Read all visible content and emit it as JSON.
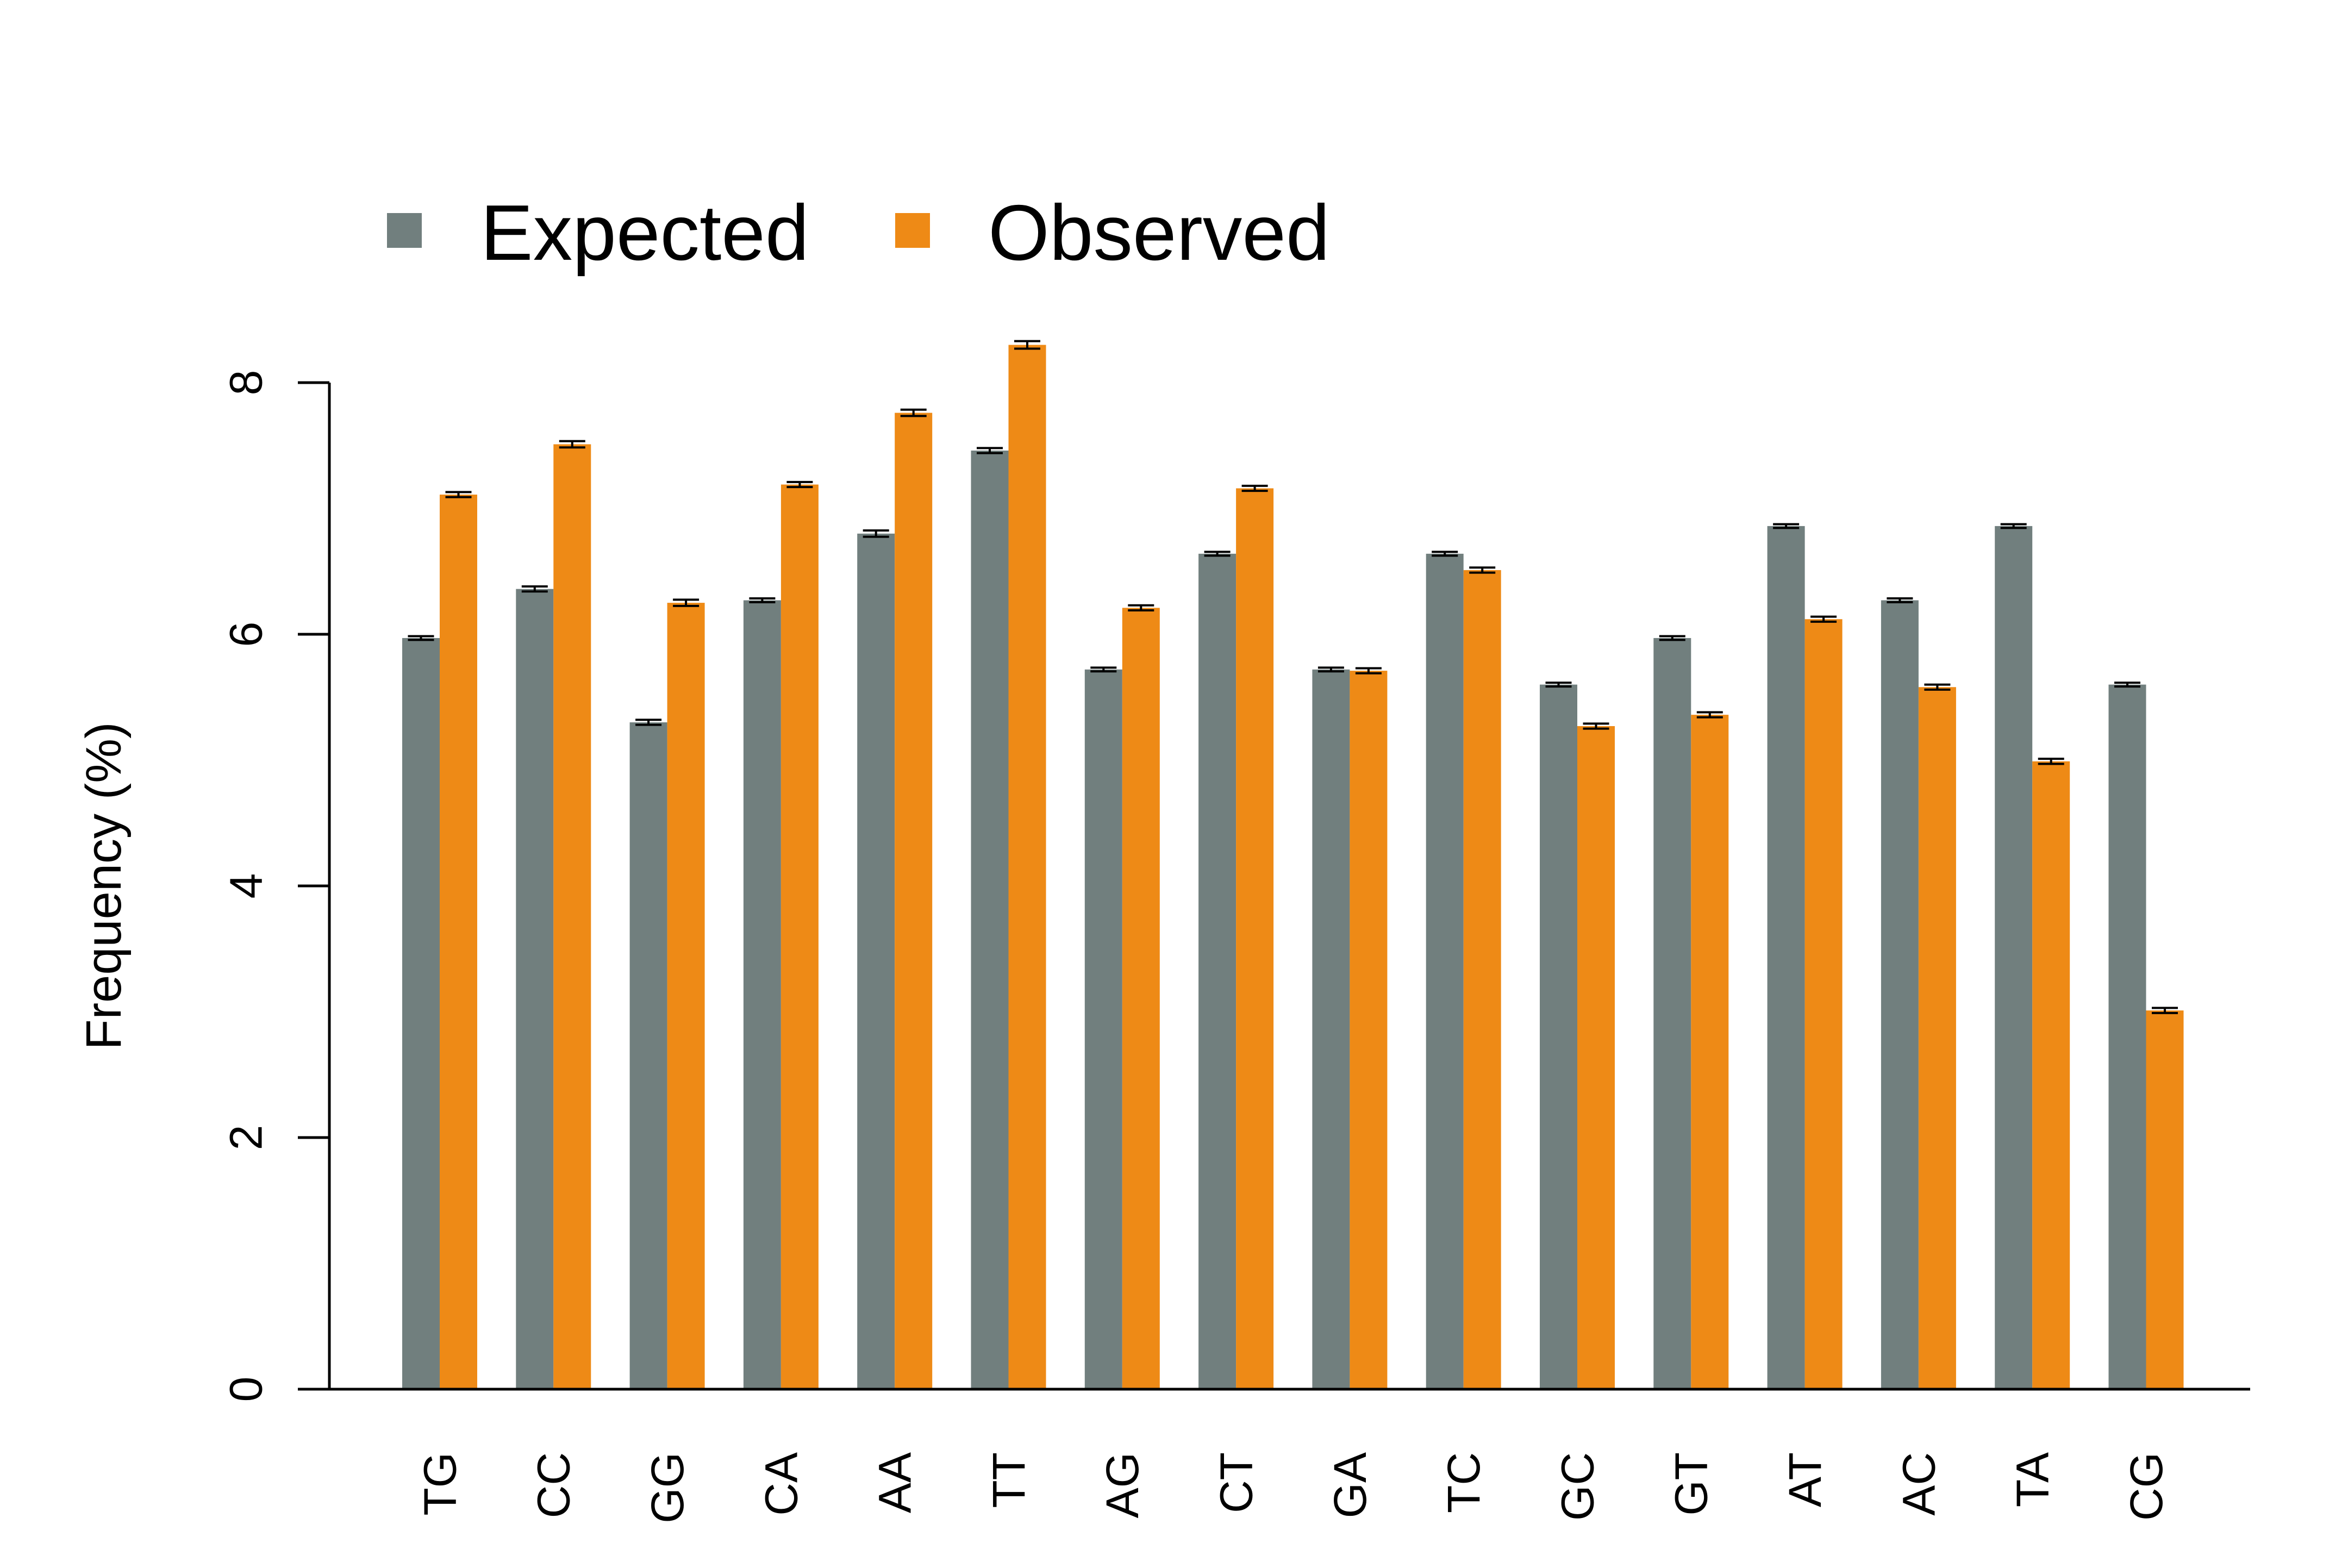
{
  "chart_data": {
    "type": "bar",
    "title": "",
    "xlabel": "",
    "ylabel": "Frequency (%)",
    "ylim": [
      0,
      8
    ],
    "yticks": [
      0,
      2,
      4,
      6,
      8
    ],
    "legend_position": "top-left",
    "grid": false,
    "error_bars": true,
    "categories": [
      "TG",
      "CC",
      "GG",
      "CA",
      "AA",
      "TT",
      "AG",
      "CT",
      "GA",
      "TC",
      "GC",
      "GT",
      "AT",
      "AC",
      "TA",
      "CG"
    ],
    "series": [
      {
        "name": "Expected",
        "color": "#717f7e",
        "values": [
          5.97,
          6.36,
          5.3,
          6.27,
          6.8,
          7.46,
          5.72,
          6.64,
          5.72,
          6.64,
          5.6,
          5.97,
          6.86,
          6.27,
          6.86,
          5.6
        ],
        "errors": [
          0.015,
          0.02,
          0.02,
          0.015,
          0.025,
          0.02,
          0.015,
          0.015,
          0.015,
          0.015,
          0.015,
          0.015,
          0.015,
          0.015,
          0.015,
          0.015
        ]
      },
      {
        "name": "Observed",
        "color": "#ee8a16",
        "values": [
          7.11,
          7.51,
          6.25,
          7.19,
          7.76,
          8.3,
          6.21,
          7.16,
          5.71,
          6.51,
          5.27,
          5.36,
          6.12,
          5.58,
          4.99,
          3.01
        ],
        "errors": [
          0.02,
          0.025,
          0.025,
          0.02,
          0.025,
          0.03,
          0.02,
          0.02,
          0.02,
          0.02,
          0.02,
          0.02,
          0.02,
          0.02,
          0.02,
          0.02
        ]
      }
    ]
  }
}
